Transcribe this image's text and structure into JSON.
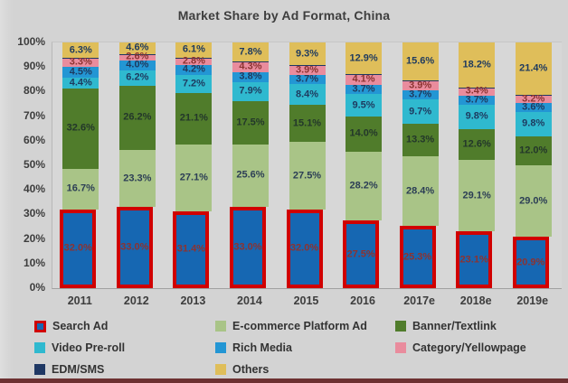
{
  "title": "Market Share by Ad Format, China",
  "chart_data": {
    "type": "bar",
    "stacked": true,
    "title": "Market Share by Ad Format, China",
    "xlabel": "",
    "ylabel": "",
    "ylim": [
      0,
      100
    ],
    "ytick_step": 10,
    "grid": false,
    "legend_position": "bottom",
    "categories": [
      "2011",
      "2012",
      "2013",
      "2014",
      "2015",
      "2016",
      "2017e",
      "2018e",
      "2019e"
    ],
    "series": [
      {
        "name": "Search Ad",
        "color": "#1667B2",
        "outline": "#D00000",
        "label_color": "#8C3331",
        "values": [
          32.0,
          33.0,
          31.4,
          33.0,
          32.0,
          27.5,
          25.3,
          23.1,
          20.9
        ]
      },
      {
        "name": "E-commerce Platform Ad",
        "color": "#A9C487",
        "label_color": "#2C3E55",
        "values": [
          16.7,
          23.3,
          27.1,
          25.6,
          27.5,
          28.2,
          28.4,
          29.1,
          29.0
        ]
      },
      {
        "name": "Banner/Textlink",
        "color": "#507C2B",
        "label_color": "#23372A",
        "values": [
          32.6,
          26.2,
          21.1,
          17.5,
          15.1,
          14.0,
          13.3,
          12.6,
          12.0
        ]
      },
      {
        "name": "Video Pre-roll",
        "color": "#2FB9CF",
        "label_color": "#1E3A5F",
        "values": [
          4.4,
          6.2,
          7.2,
          7.9,
          8.4,
          9.5,
          9.7,
          9.8,
          9.8
        ]
      },
      {
        "name": "Rich Media",
        "color": "#2396D4",
        "label_color": "#1E3A5F",
        "values": [
          4.5,
          4.0,
          4.2,
          3.8,
          3.7,
          3.7,
          3.7,
          3.7,
          3.6
        ]
      },
      {
        "name": "Category/Yellowpage",
        "color": "#E98C9D",
        "label_color": "#8C3331",
        "values": [
          3.3,
          2.6,
          2.8,
          4.3,
          3.9,
          4.1,
          3.9,
          3.4,
          3.2
        ]
      },
      {
        "name": "EDM/SMS",
        "color": "#1F3864",
        "label_color": "#1F3864",
        "labels_visible": false,
        "values": [
          0.1,
          0.1,
          0.1,
          0.1,
          0.1,
          0.1,
          0.1,
          0.1,
          0.1
        ]
      },
      {
        "name": "Others",
        "color": "#DFBE5A",
        "label_color": "#1E3A5F",
        "values": [
          6.3,
          4.6,
          6.1,
          7.8,
          9.3,
          12.9,
          15.6,
          18.2,
          21.4
        ]
      }
    ]
  },
  "y_axis": {
    "ticks": [
      "100%",
      "90%",
      "80%",
      "70%",
      "60%",
      "50%",
      "40%",
      "30%",
      "20%",
      "10%",
      "0%"
    ]
  },
  "legend": {
    "items": [
      {
        "label": "Search Ad",
        "color": "#1667B2",
        "outline": "#D00000"
      },
      {
        "label": "E-commerce Platform Ad",
        "color": "#A9C487"
      },
      {
        "label": "Banner/Textlink",
        "color": "#507C2B"
      },
      {
        "label": "Video Pre-roll",
        "color": "#2FB9CF"
      },
      {
        "label": "Rich Media",
        "color": "#2396D4"
      },
      {
        "label": "Category/Yellowpage",
        "color": "#E98C9D"
      },
      {
        "label": "EDM/SMS",
        "color": "#1F3864"
      },
      {
        "label": "Others",
        "color": "#DFBE5A"
      }
    ]
  }
}
